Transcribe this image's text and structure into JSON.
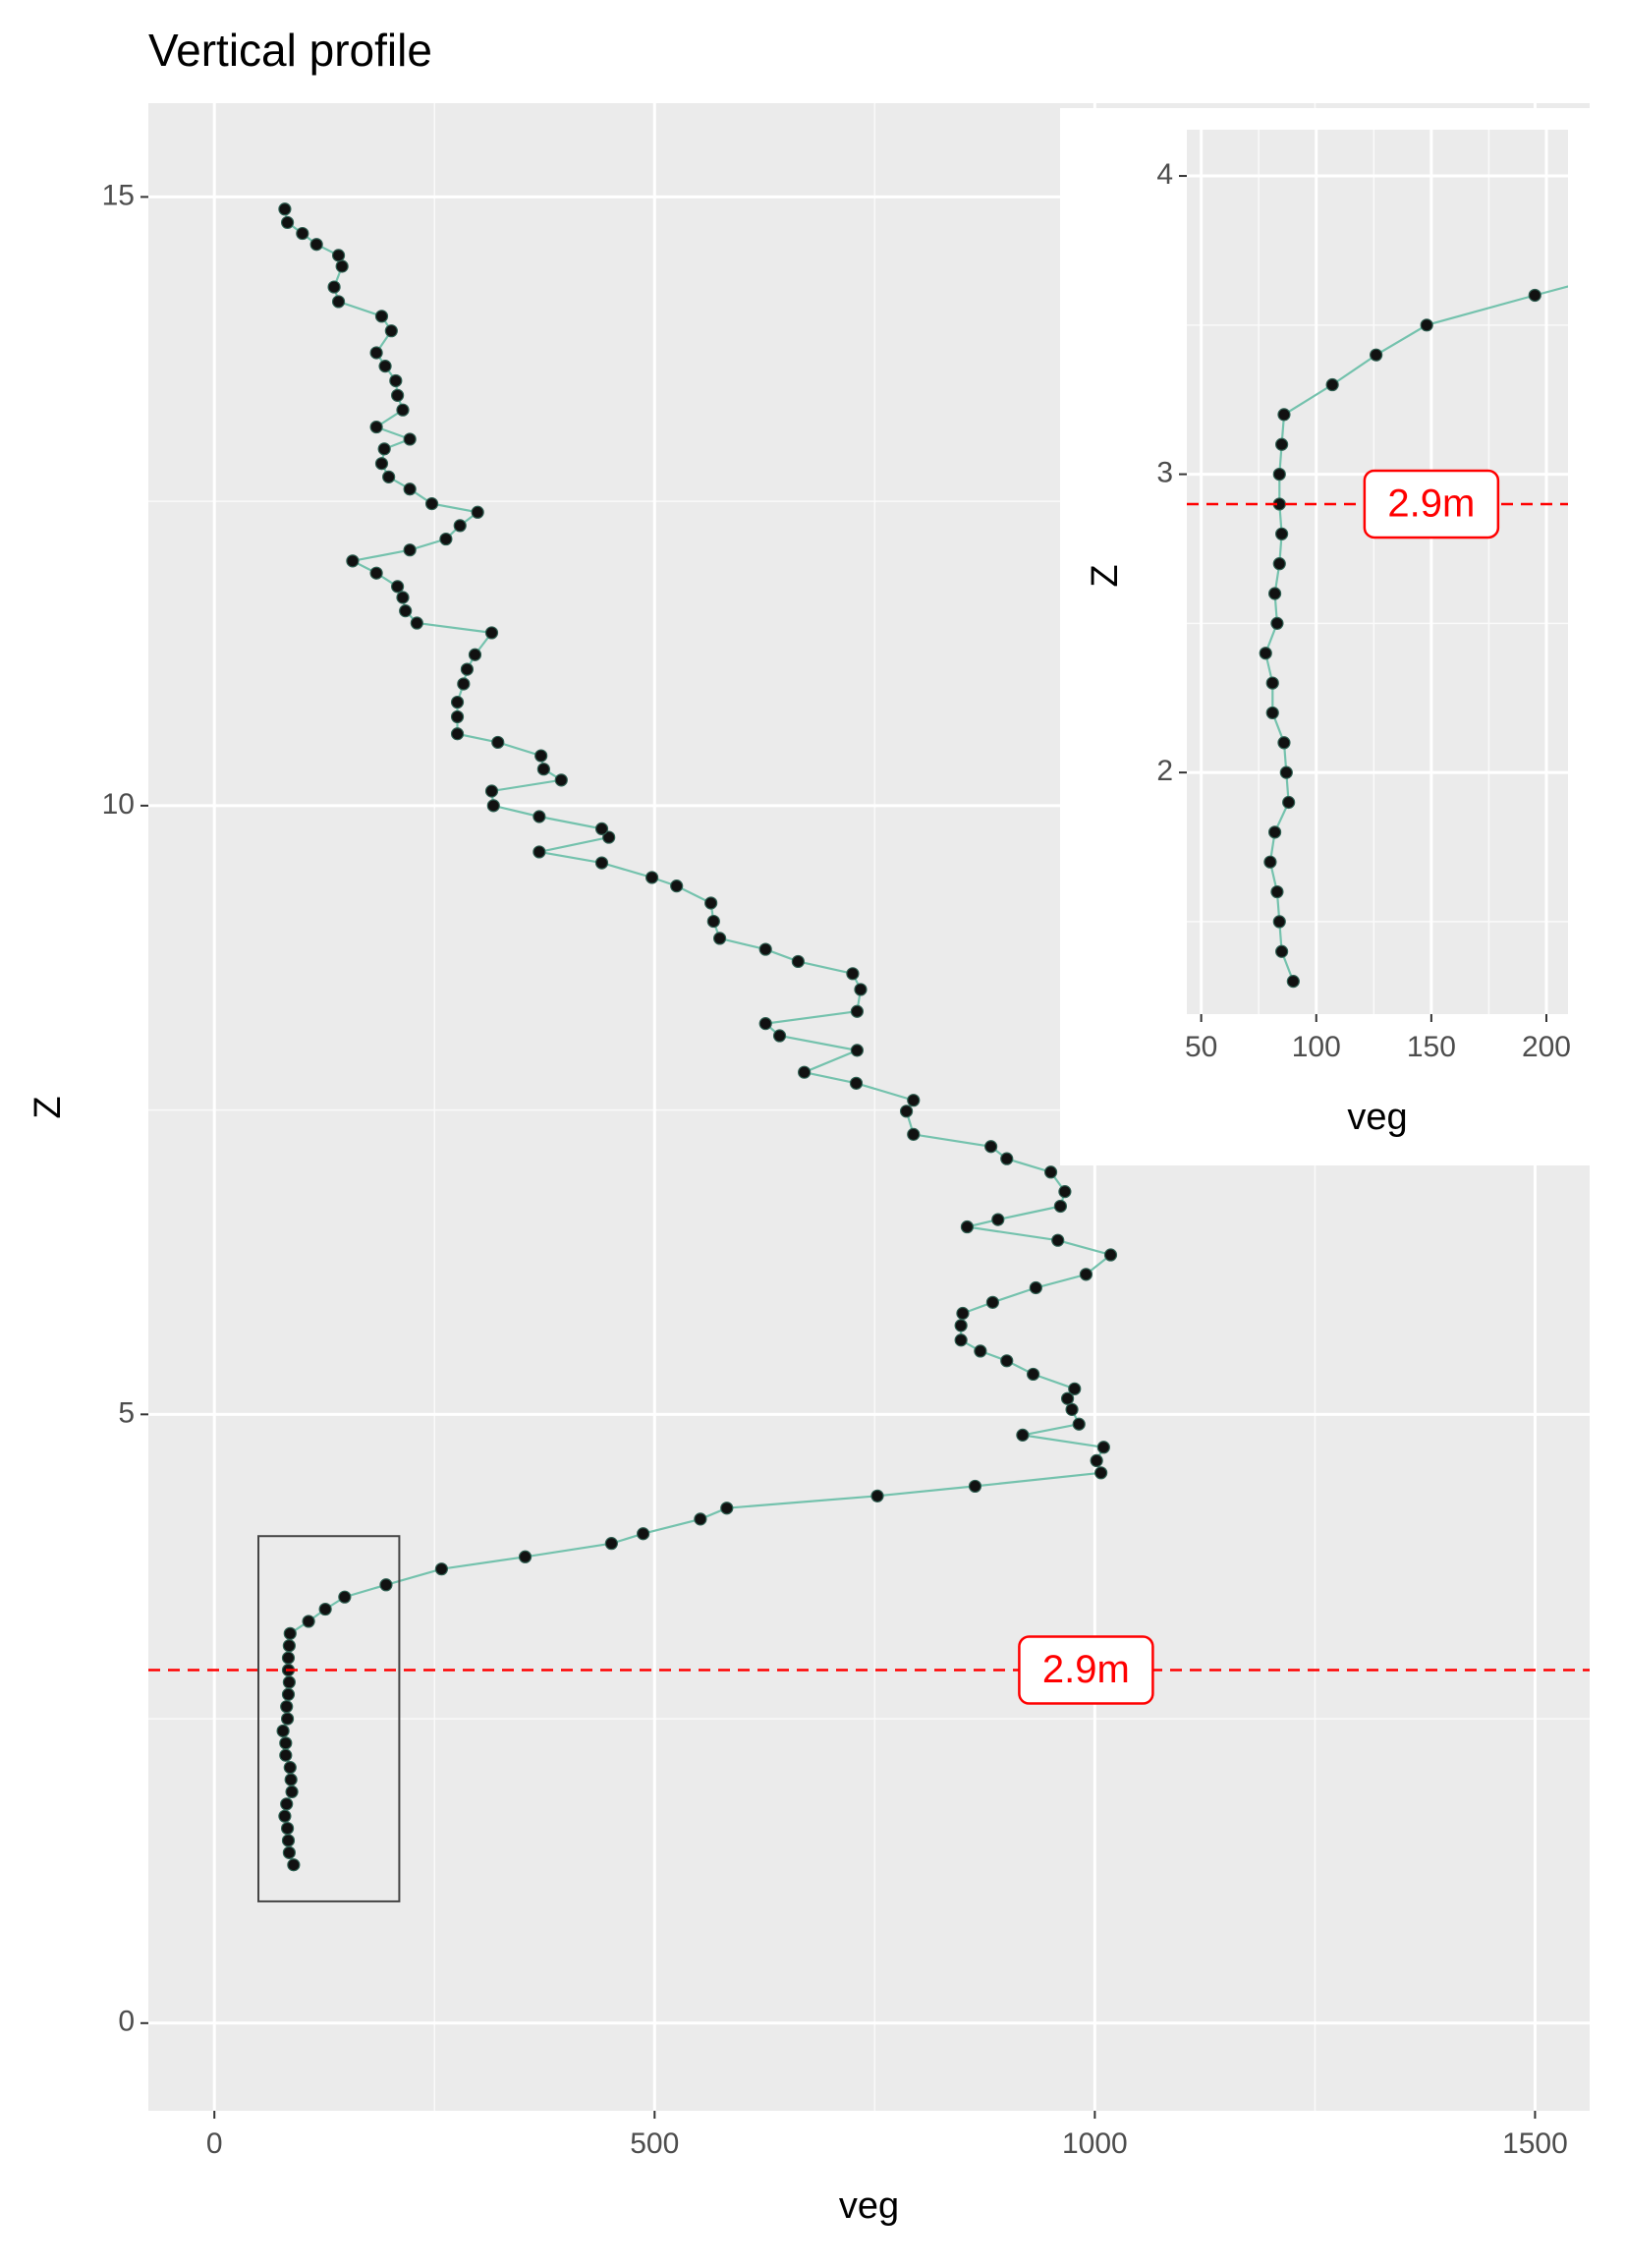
{
  "chart_data": {
    "type": "line",
    "title": "Vertical profile",
    "x_label": "veg",
    "y_label": "Z",
    "line_color": "#74c2ad",
    "point_color": "#111111",
    "background": "#ebebeb",
    "grid": true,
    "xlim": [
      -75,
      1562
    ],
    "ylim": [
      -0.72,
      15.77
    ],
    "xticks": [
      0,
      500,
      1000,
      1500
    ],
    "yticks": [
      0,
      5,
      10,
      15
    ],
    "xminor": [
      250,
      750,
      1250
    ],
    "yminor": [
      2.5,
      7.5,
      12.5
    ],
    "x": [
      90,
      85,
      84,
      83,
      80,
      82,
      88,
      87,
      86,
      81,
      81,
      78,
      83,
      82,
      84,
      85,
      84,
      84,
      85,
      86,
      107,
      126,
      148,
      195,
      258,
      353,
      451,
      487,
      552,
      582,
      753,
      864,
      1007,
      1002,
      1010,
      918,
      982,
      974,
      969,
      977,
      930,
      900,
      870,
      848,
      848,
      850,
      884,
      933,
      990,
      1018,
      958,
      855,
      890,
      961,
      966,
      950,
      900,
      882,
      794,
      786,
      794,
      729,
      670,
      730,
      642,
      626,
      730,
      734,
      725,
      663,
      626,
      574,
      567,
      564,
      525,
      497,
      440,
      369,
      448,
      440,
      369,
      317,
      315,
      394,
      374,
      371,
      322,
      276,
      276,
      276,
      283,
      287,
      296,
      315,
      230,
      217,
      214,
      208,
      184,
      157,
      222,
      263,
      279,
      299,
      247,
      222,
      198,
      190,
      193,
      222,
      184,
      214,
      208,
      206,
      194,
      184,
      201,
      190,
      141,
      136,
      145,
      141,
      116,
      100,
      83,
      80
    ],
    "y": [
      1.3,
      1.4,
      1.5,
      1.6,
      1.7,
      1.8,
      1.9,
      2.0,
      2.1,
      2.2,
      2.3,
      2.4,
      2.5,
      2.6,
      2.7,
      2.8,
      2.9,
      3.0,
      3.1,
      3.2,
      3.3,
      3.4,
      3.5,
      3.6,
      3.73,
      3.83,
      3.94,
      4.02,
      4.14,
      4.23,
      4.33,
      4.41,
      4.52,
      4.62,
      4.73,
      4.83,
      4.92,
      5.04,
      5.13,
      5.21,
      5.33,
      5.44,
      5.52,
      5.61,
      5.73,
      5.83,
      5.92,
      6.04,
      6.15,
      6.31,
      6.43,
      6.54,
      6.6,
      6.71,
      6.83,
      6.99,
      7.1,
      7.2,
      7.3,
      7.49,
      7.58,
      7.72,
      7.81,
      7.99,
      8.11,
      8.21,
      8.31,
      8.49,
      8.62,
      8.72,
      8.82,
      8.91,
      9.05,
      9.2,
      9.34,
      9.41,
      9.53,
      9.62,
      9.74,
      9.81,
      9.91,
      10.0,
      10.12,
      10.21,
      10.3,
      10.41,
      10.52,
      10.59,
      10.73,
      10.85,
      11.0,
      11.12,
      11.24,
      11.42,
      11.5,
      11.6,
      11.71,
      11.8,
      11.91,
      12.01,
      12.1,
      12.19,
      12.3,
      12.41,
      12.48,
      12.6,
      12.7,
      12.81,
      12.93,
      13.01,
      13.11,
      13.25,
      13.37,
      13.49,
      13.61,
      13.72,
      13.9,
      14.02,
      14.14,
      14.26,
      14.43,
      14.52,
      14.61,
      14.7,
      14.79,
      14.9
    ],
    "hline": {
      "value": 2.9,
      "label": "2.9m",
      "label_x": 990,
      "color": "#ff0000"
    },
    "zoom_box": {
      "xlim": [
        50,
        210
      ],
      "ylim": [
        1,
        4
      ]
    },
    "inset": {
      "x_label": "veg",
      "y_label": "Z",
      "xlim": [
        43.75,
        209.4
      ],
      "ylim": [
        1.19,
        4.155
      ],
      "xticks": [
        50,
        100,
        150,
        200
      ],
      "yticks": [
        2,
        3,
        4
      ],
      "xminor": [
        75,
        125,
        175
      ],
      "yminor": [
        1.5,
        2.5,
        3.5
      ],
      "hline_label_x": 150
    }
  }
}
